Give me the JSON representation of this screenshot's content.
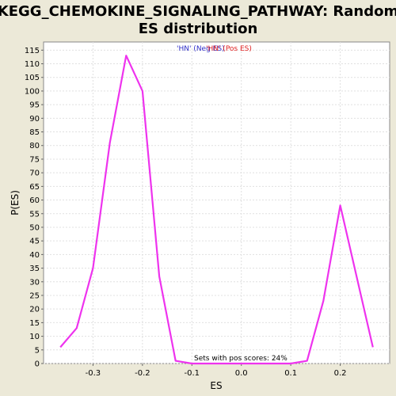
{
  "chart_data": {
    "type": "line",
    "title_line1": "KEGG_CHEMOKINE_SIGNALING_PATHWAY: Random",
    "title_line2": "ES distribution",
    "xlabel": "ES",
    "ylabel": "P(ES)",
    "xlim": [
      -0.4,
      0.3
    ],
    "ylim": [
      0,
      118
    ],
    "x_ticks": [
      -0.3,
      -0.2,
      -0.1,
      0.0,
      0.1,
      0.2
    ],
    "x_tick_labels": [
      "-0.3",
      "-0.2",
      "-0.1",
      "0.0",
      "0.1",
      "0.2"
    ],
    "y_ticks": [
      0,
      5,
      10,
      15,
      20,
      25,
      30,
      35,
      40,
      45,
      50,
      55,
      60,
      65,
      70,
      75,
      80,
      85,
      90,
      95,
      100,
      105,
      110,
      115
    ],
    "grid": true,
    "legend": {
      "neg_label": "'HN' (Neg ES)",
      "pos_label": "'HN' (Pos ES)",
      "placement": "top-center"
    },
    "annotation": "Sets with pos scores: 24%",
    "series": [
      {
        "color": "#ee33ee",
        "x": [
          -0.366,
          -0.333,
          -0.3,
          -0.266,
          -0.233,
          -0.2,
          -0.166,
          -0.133,
          -0.1,
          -0.066,
          -0.033,
          0.0,
          0.033,
          0.066,
          0.1,
          0.133,
          0.166,
          0.2,
          0.233,
          0.266
        ],
        "y": [
          6,
          13,
          35,
          81,
          113,
          100,
          32,
          1,
          0,
          0,
          0,
          0,
          0,
          0,
          0,
          1,
          23,
          58,
          32,
          6
        ]
      }
    ]
  }
}
